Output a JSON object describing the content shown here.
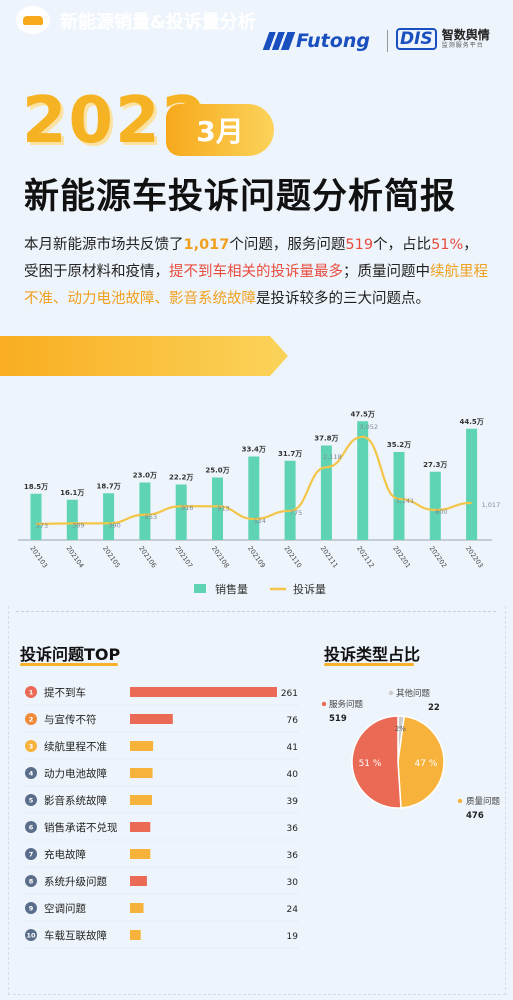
{
  "header": {
    "brand_futong": "Futong",
    "brand_zhishu_mark": "DIS",
    "brand_zhishu_name": "智数舆情",
    "brand_zhishu_sub": "监测服务平台"
  },
  "hero": {
    "year": "2022",
    "month": "3月",
    "title": "新能源车投诉问题分析简报"
  },
  "intro": {
    "p1": "本月新能源市场共反馈了",
    "total": "1,017",
    "p2": "个问题，服务问题",
    "service_count": "519",
    "p3": "个，占比",
    "service_pct": "51%",
    "p4": "，受困于原材料和疫情，",
    "highlight": "提不到车相关的投诉量最多",
    "p5": "；质量问题中",
    "top3": "续航里程不准、动力电池故障、影音系统故障",
    "p6": "是投诉较多的三大问题点。"
  },
  "section": {
    "title": "新能源销量&投诉量分析"
  },
  "colors": {
    "bar": "#5fd4b4",
    "line": "#f3c548",
    "accent": "#f5b324",
    "red": "#ea6a55",
    "orange": "#f7b23b",
    "grey": "#cccccc"
  },
  "chart_data": [
    {
      "type": "bar+line",
      "categories": [
        "202103",
        "202104",
        "202105",
        "202106",
        "202107",
        "202108",
        "202109",
        "202110",
        "202111",
        "202112",
        "202201",
        "202202",
        "202203"
      ],
      "series": [
        {
          "name": "销售量",
          "type": "bar",
          "values": [
            18.5,
            16.1,
            18.7,
            23.0,
            22.2,
            25.0,
            33.4,
            31.7,
            37.8,
            47.5,
            35.2,
            27.3,
            44.5
          ],
          "labels": [
            "18.5万",
            "16.1万",
            "18.7万",
            "23.0万",
            "22.2万",
            "25.0万",
            "33.4万",
            "31.7万",
            "37.8万",
            "47.5万",
            "35.2万",
            "27.3万",
            "44.5万"
          ]
        },
        {
          "name": "投诉量",
          "type": "line",
          "values": [
            373,
            389,
            390,
            653,
            916,
            913,
            524,
            775,
            2118,
            3052,
            1141,
            800,
            1017
          ],
          "labels": [
            "373",
            "389",
            "390",
            "653",
            "916",
            "913",
            "524",
            "775",
            "2,118",
            "3,052",
            "1,141",
            "800",
            "1,017"
          ]
        }
      ]
    },
    {
      "type": "bar",
      "title": "投诉问题TOP",
      "categories": [
        "提不到车",
        "与宣传不符",
        "续航里程不准",
        "动力电池故障",
        "影音系统故障",
        "销售承诺不兑现",
        "充电故障",
        "系统升级问题",
        "空调问题",
        "车载互联故障"
      ],
      "ranks": [
        "1",
        "2",
        "3",
        "4",
        "5",
        "6",
        "7",
        "8",
        "9",
        "10"
      ],
      "values": [
        261,
        76,
        41,
        40,
        39,
        36,
        36,
        30,
        24,
        19
      ]
    },
    {
      "type": "pie",
      "title": "投诉类型占比",
      "slices": [
        {
          "name": "服务问题",
          "value": 519,
          "pct": "51 %"
        },
        {
          "name": "质量问题",
          "value": 476,
          "pct": "47 %"
        },
        {
          "name": "其他问题",
          "value": 22,
          "pct": "2%"
        }
      ]
    }
  ]
}
